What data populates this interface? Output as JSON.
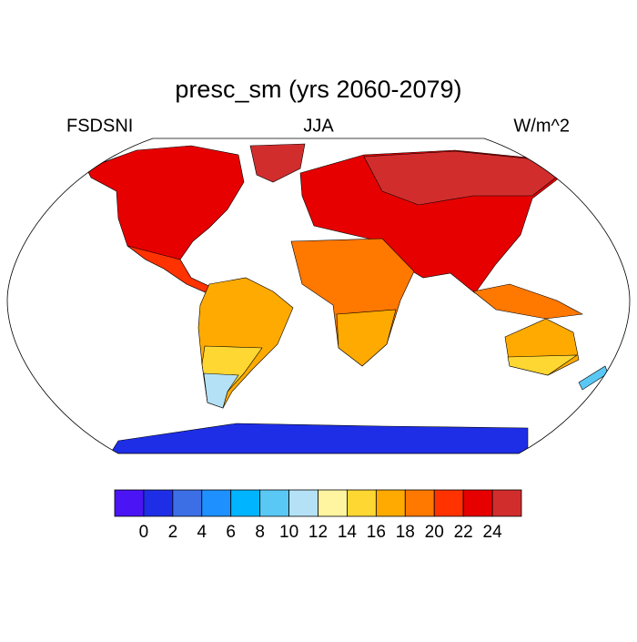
{
  "title": "presc_sm (yrs 2060-2079)",
  "left_string": "FSDSNI",
  "center_string": "JJA",
  "right_string": "W/m^2",
  "colorbar": {
    "levels": [
      0,
      2,
      4,
      6,
      8,
      10,
      12,
      14,
      16,
      18,
      20,
      22,
      24
    ],
    "colors": [
      "#4a14f5",
      "#1e2ee6",
      "#3c6ee6",
      "#1e90ff",
      "#00b4ff",
      "#5ac8f5",
      "#b4e1f5",
      "#fff5a0",
      "#ffd732",
      "#ffaa00",
      "#ff7800",
      "#ff3200",
      "#e60000",
      "#d22d2d"
    ]
  }
}
